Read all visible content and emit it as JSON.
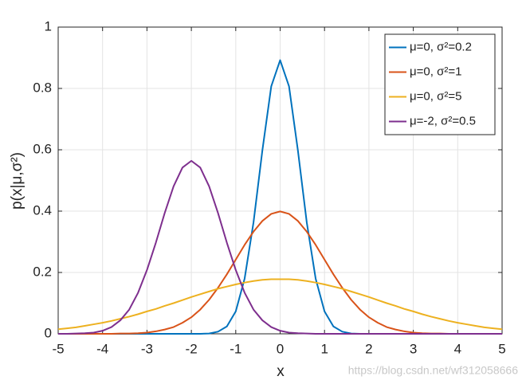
{
  "chart_data": {
    "type": "line",
    "xlabel": "x",
    "ylabel": "p(x|μ,σ²)",
    "x": [
      -5,
      -4.8,
      -4.6,
      -4.4,
      -4.2,
      -4,
      -3.8,
      -3.6,
      -3.4,
      -3.2,
      -3,
      -2.8,
      -2.6,
      -2.4,
      -2.2,
      -2,
      -1.8,
      -1.6,
      -1.4,
      -1.2,
      -1,
      -0.8,
      -0.6,
      -0.4,
      -0.2,
      0,
      0.2,
      0.4,
      0.6,
      0.8,
      1,
      1.2,
      1.4,
      1.6,
      1.8,
      2,
      2.2,
      2.4,
      2.6,
      2.8,
      3,
      3.2,
      3.4,
      3.6,
      3.8,
      4,
      4.2,
      4.4,
      4.6,
      4.8,
      5
    ],
    "series": [
      {
        "name": "μ=0, σ²=0.2",
        "color": "#0072bd",
        "values": [
          0,
          0,
          0,
          0,
          0,
          0,
          0,
          0,
          0,
          0,
          0,
          0,
          0,
          0,
          0,
          0,
          0,
          0.001,
          0.007,
          0.024,
          0.073,
          0.18,
          0.363,
          0.598,
          0.807,
          0.892,
          0.807,
          0.598,
          0.363,
          0.18,
          0.073,
          0.024,
          0.007,
          0.001,
          0,
          0,
          0,
          0,
          0,
          0,
          0,
          0,
          0,
          0,
          0,
          0,
          0,
          0,
          0,
          0,
          0
        ]
      },
      {
        "name": "μ=0, σ²=1",
        "color": "#d95319",
        "values": [
          0,
          0,
          0,
          0,
          0,
          0,
          0,
          0.001,
          0.001,
          0.002,
          0.004,
          0.008,
          0.014,
          0.022,
          0.036,
          0.054,
          0.079,
          0.111,
          0.15,
          0.194,
          0.242,
          0.29,
          0.333,
          0.368,
          0.391,
          0.399,
          0.391,
          0.368,
          0.333,
          0.29,
          0.242,
          0.194,
          0.15,
          0.111,
          0.079,
          0.054,
          0.036,
          0.022,
          0.014,
          0.008,
          0.004,
          0.002,
          0.001,
          0.001,
          0,
          0,
          0,
          0,
          0,
          0,
          0
        ]
      },
      {
        "name": "μ=0, σ²=5",
        "color": "#edb120",
        "values": [
          0.015,
          0.018,
          0.021,
          0.026,
          0.031,
          0.036,
          0.042,
          0.049,
          0.056,
          0.064,
          0.073,
          0.081,
          0.091,
          0.1,
          0.11,
          0.12,
          0.129,
          0.138,
          0.147,
          0.154,
          0.161,
          0.167,
          0.172,
          0.176,
          0.178,
          0.178,
          0.178,
          0.176,
          0.172,
          0.167,
          0.161,
          0.154,
          0.147,
          0.138,
          0.129,
          0.12,
          0.11,
          0.1,
          0.091,
          0.081,
          0.073,
          0.064,
          0.056,
          0.049,
          0.042,
          0.036,
          0.031,
          0.026,
          0.021,
          0.018,
          0.015
        ]
      },
      {
        "name": "μ=-2, σ²=0.5",
        "color": "#7e2f8e",
        "values": [
          0,
          0,
          0.001,
          0.002,
          0.004,
          0.01,
          0.022,
          0.044,
          0.079,
          0.134,
          0.208,
          0.297,
          0.394,
          0.481,
          0.542,
          0.564,
          0.542,
          0.481,
          0.394,
          0.297,
          0.208,
          0.134,
          0.079,
          0.044,
          0.022,
          0.01,
          0.004,
          0.002,
          0.001,
          0,
          0,
          0,
          0,
          0,
          0,
          0,
          0,
          0,
          0,
          0,
          0,
          0,
          0,
          0,
          0,
          0,
          0,
          0,
          0,
          0,
          0
        ]
      }
    ],
    "xlim": [
      -5,
      5
    ],
    "xticks": [
      -5,
      -4,
      -3,
      -2,
      -1,
      0,
      1,
      2,
      3,
      4,
      5
    ],
    "ylim": [
      0,
      1
    ],
    "yticks": [
      0,
      0.2,
      0.4,
      0.6,
      0.8,
      1
    ],
    "grid": true,
    "legend": "upper right",
    "watermark": "https://blog.csdn.net/wf312058666"
  }
}
